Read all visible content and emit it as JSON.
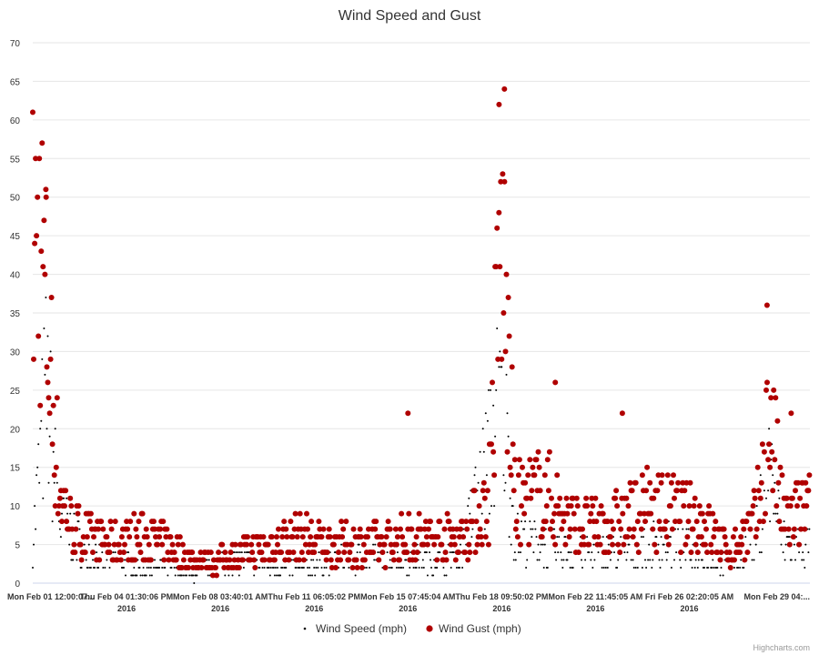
{
  "chart_data": {
    "type": "scatter",
    "title": "Wind Speed and Gust",
    "ylim": [
      0,
      70
    ],
    "y_ticks": [
      "0",
      "5",
      "10",
      "15",
      "20",
      "25",
      "30",
      "35",
      "40",
      "45",
      "50",
      "55",
      "60",
      "65",
      "70"
    ],
    "x_ticks": [
      {
        "label": "Mon Feb 01 12:00:07...",
        "year": ""
      },
      {
        "label": "Thu Feb 04 01:30:06 PM",
        "year": "2016"
      },
      {
        "label": "Mon Feb 08 03:40:01 AM",
        "year": "2016"
      },
      {
        "label": "Thu Feb 11 06:05:02 PM",
        "year": "2016"
      },
      {
        "label": "Mon Feb 15 07:45:04 AM",
        "year": "2016"
      },
      {
        "label": "Thu Feb 18 09:50:02 PM",
        "year": "2016"
      },
      {
        "label": "Mon Feb 22 11:45:05 AM",
        "year": "2016"
      },
      {
        "label": "Fri Feb 26 02:20:05 AM",
        "year": "2016"
      },
      {
        "label": "Mon Feb 29 04:...",
        "year": ""
      }
    ],
    "x_domain_note": "Feb 01 2016 to Feb 29 2016, 29 days",
    "grid": true,
    "legend_position": "bottom-center",
    "credits": "Highcharts.com",
    "series": [
      {
        "name": "Wind Speed (mph)",
        "color": "#000000",
        "marker": "small-dot",
        "profile": [
          [
            0,
            5
          ],
          [
            0.5,
            25
          ],
          [
            1,
            8
          ],
          [
            2,
            4
          ],
          [
            3,
            3
          ],
          [
            4,
            2
          ],
          [
            5,
            2
          ],
          [
            6,
            1
          ],
          [
            7,
            3
          ],
          [
            8,
            3
          ],
          [
            9,
            2
          ],
          [
            10,
            2
          ],
          [
            11,
            3
          ],
          [
            12,
            3
          ],
          [
            13,
            4
          ],
          [
            14,
            3
          ],
          [
            15,
            3
          ],
          [
            16,
            4
          ],
          [
            17,
            16
          ],
          [
            17.5,
            25
          ],
          [
            18,
            6
          ],
          [
            19,
            5
          ],
          [
            20,
            4
          ],
          [
            21,
            4
          ],
          [
            22,
            4
          ],
          [
            23,
            5
          ],
          [
            24,
            5
          ],
          [
            25,
            4
          ],
          [
            26,
            2
          ],
          [
            27,
            6
          ],
          [
            27.5,
            15
          ],
          [
            28,
            5
          ],
          [
            29,
            5
          ]
        ]
      },
      {
        "name": "Wind Gust (mph)",
        "color": "#b00000",
        "marker": "circle",
        "profile": [
          [
            0,
            42
          ],
          [
            0.3,
            45
          ],
          [
            0.5,
            35
          ],
          [
            1,
            12
          ],
          [
            1.5,
            7
          ],
          [
            2,
            6
          ],
          [
            3,
            5
          ],
          [
            4,
            6
          ],
          [
            5,
            5
          ],
          [
            6,
            3
          ],
          [
            7,
            3
          ],
          [
            8,
            4
          ],
          [
            9,
            5
          ],
          [
            10,
            6
          ],
          [
            11,
            5
          ],
          [
            12,
            5
          ],
          [
            13,
            5
          ],
          [
            14,
            6
          ],
          [
            15,
            6
          ],
          [
            16,
            6
          ],
          [
            17,
            10
          ],
          [
            17.5,
            45
          ],
          [
            18,
            10
          ],
          [
            19,
            12
          ],
          [
            20,
            8
          ],
          [
            21,
            7
          ],
          [
            22,
            8
          ],
          [
            23,
            10
          ],
          [
            24,
            9
          ],
          [
            25,
            8
          ],
          [
            26,
            4
          ],
          [
            27,
            8
          ],
          [
            27.5,
            22
          ],
          [
            28,
            8
          ],
          [
            29,
            10
          ]
        ]
      }
    ],
    "annotated_peaks": [
      {
        "series": "Wind Gust (mph)",
        "x_day": 0.5,
        "y": 50
      },
      {
        "series": "Wind Gust (mph)",
        "x_day": 14.0,
        "y": 22
      },
      {
        "series": "Wind Gust (mph)",
        "x_day": 17.4,
        "y": 62
      },
      {
        "series": "Wind Gust (mph)",
        "x_day": 17.6,
        "y": 64
      },
      {
        "series": "Wind Gust (mph)",
        "x_day": 19.5,
        "y": 26
      },
      {
        "series": "Wind Gust (mph)",
        "x_day": 22.0,
        "y": 22
      },
      {
        "series": "Wind Gust (mph)",
        "x_day": 27.4,
        "y": 36
      },
      {
        "series": "Wind Gust (mph)",
        "x_day": 28.3,
        "y": 22
      }
    ]
  }
}
